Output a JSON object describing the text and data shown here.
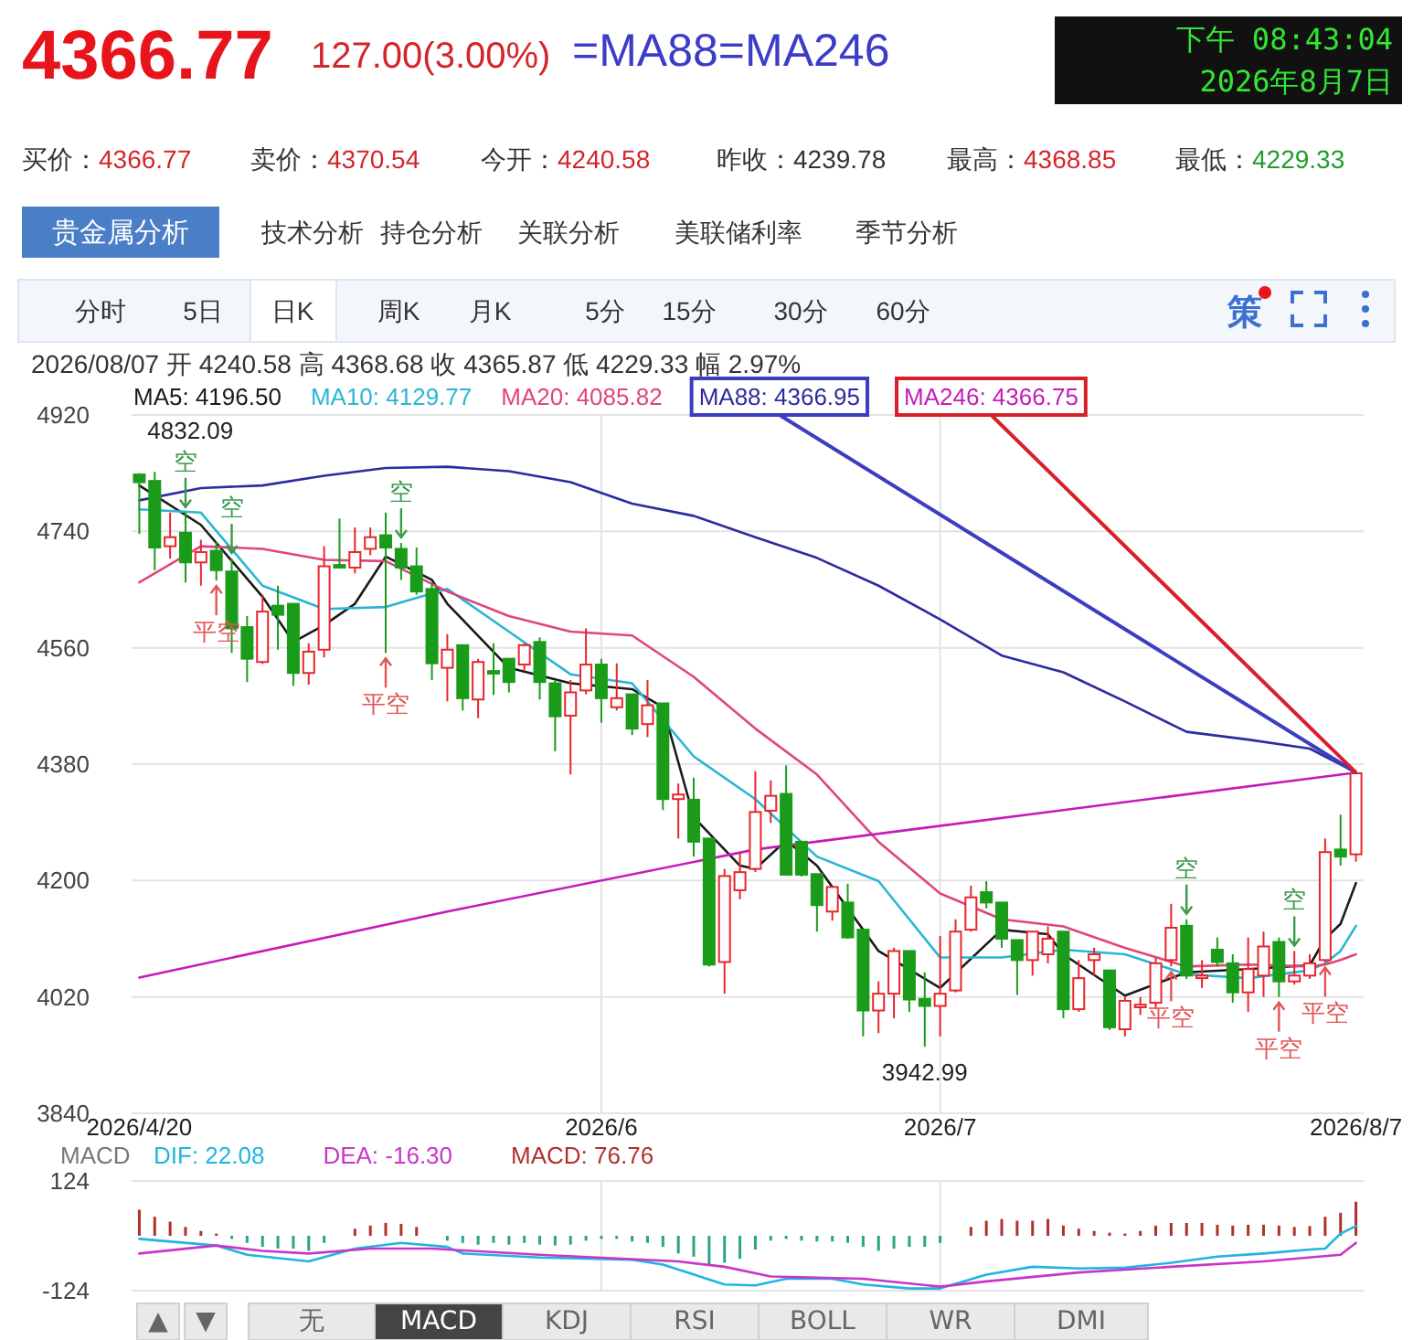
{
  "chart_data": [
    {
      "type": "candlestick",
      "categories": [
        "2026/4/20",
        null,
        null,
        null,
        null,
        null,
        null,
        null,
        null,
        null,
        null,
        null,
        null,
        null,
        null,
        null,
        null,
        null,
        null,
        null,
        null,
        null,
        null,
        null,
        null,
        null,
        null,
        null,
        null,
        null,
        "2026/6",
        null,
        null,
        null,
        null,
        null,
        null,
        null,
        null,
        null,
        null,
        null,
        null,
        null,
        null,
        null,
        null,
        null,
        null,
        null,
        null,
        null,
        "2026/7",
        null,
        null,
        null,
        null,
        null,
        null,
        null,
        null,
        null,
        null,
        null,
        null,
        null,
        null,
        null,
        null,
        null,
        null,
        null,
        null,
        null,
        null,
        null,
        null,
        null,
        null,
        "2026/8/7"
      ],
      "ohlc": [
        [
          4828,
          4830,
          4736,
          4816
        ],
        [
          4818,
          4832.09,
          4680,
          4715
        ],
        [
          4717,
          4769,
          4698,
          4731
        ],
        [
          4738,
          4769,
          4661,
          4692
        ],
        [
          4692,
          4727,
          4656,
          4708
        ],
        [
          4710,
          4724,
          4664,
          4680
        ],
        [
          4678,
          4698,
          4552,
          4590
        ],
        [
          4592,
          4609,
          4507,
          4543
        ],
        [
          4538,
          4642,
          4535,
          4616
        ],
        [
          4625,
          4656,
          4557,
          4611
        ],
        [
          4628,
          4628,
          4501,
          4521
        ],
        [
          4521,
          4567,
          4503,
          4554
        ],
        [
          4557,
          4717,
          4545,
          4686
        ],
        [
          4688,
          4760,
          4684,
          4684
        ],
        [
          4684,
          4746,
          4675,
          4708
        ],
        [
          4713,
          4746,
          4703,
          4731
        ],
        [
          4734,
          4769,
          4552,
          4715
        ],
        [
          4713,
          4722,
          4665,
          4684
        ],
        [
          4686,
          4715,
          4642,
          4647
        ],
        [
          4651,
          4661,
          4510,
          4536
        ],
        [
          4529,
          4581,
          4477,
          4557
        ],
        [
          4564,
          4564,
          4463,
          4482
        ],
        [
          4480,
          4543,
          4451,
          4538
        ],
        [
          4524,
          4567,
          4487,
          4520
        ],
        [
          4543,
          4543,
          4491,
          4507
        ],
        [
          4534,
          4567,
          4524,
          4564
        ],
        [
          4569,
          4576,
          4480,
          4507
        ],
        [
          4505,
          4510,
          4400,
          4454
        ],
        [
          4455,
          4510,
          4364,
          4491
        ],
        [
          4494,
          4590,
          4488,
          4534
        ],
        [
          4534,
          4543,
          4444,
          4482
        ],
        [
          4468,
          4536,
          4463,
          4482
        ],
        [
          4488,
          4488,
          4425,
          4435
        ],
        [
          4442,
          4510,
          4422,
          4471
        ],
        [
          4474,
          4474,
          4309,
          4326
        ],
        [
          4326,
          4350,
          4265,
          4333
        ],
        [
          4325,
          4359,
          4237,
          4260
        ],
        [
          4265,
          4265,
          4067,
          4070
        ],
        [
          4074,
          4218,
          4025,
          4207
        ],
        [
          4185,
          4242,
          4171,
          4213
        ],
        [
          4218,
          4369,
          4213,
          4306
        ],
        [
          4308,
          4355,
          4289,
          4331
        ],
        [
          4334,
          4378,
          4209,
          4209
        ],
        [
          4260,
          4260,
          4206,
          4209
        ],
        [
          4210,
          4210,
          4121,
          4162
        ],
        [
          4152,
          4190,
          4138,
          4190
        ],
        [
          4166,
          4195,
          4110,
          4112
        ],
        [
          4124,
          4124,
          3959,
          3999
        ],
        [
          3999,
          4044,
          3964,
          4025
        ],
        [
          4025,
          4096,
          3987,
          4091
        ],
        [
          4091,
          4091,
          3997,
          4016
        ],
        [
          4017,
          4058,
          3942.99,
          4006
        ],
        [
          4006,
          4114,
          3959,
          4025
        ],
        [
          4030,
          4140,
          4027,
          4121
        ],
        [
          4124,
          4192,
          4121,
          4174
        ],
        [
          4182,
          4199,
          4157,
          4166
        ],
        [
          4166,
          4166,
          4096,
          4110
        ],
        [
          4108,
          4108,
          4023,
          4077
        ],
        [
          4077,
          4121,
          4053,
          4121
        ],
        [
          4086,
          4129,
          4072,
          4110
        ],
        [
          4121,
          4121,
          3987,
          4001
        ],
        [
          4001,
          4077,
          3997,
          4049
        ],
        [
          4077,
          4096,
          4053,
          4086
        ],
        [
          4061,
          4061,
          3969,
          3973
        ],
        [
          3970,
          4020,
          3959,
          4014
        ],
        [
          4004,
          4020,
          3992,
          4008
        ],
        [
          4011,
          4081,
          4001,
          4072
        ],
        [
          4077,
          4164,
          4067,
          4127
        ],
        [
          4130,
          4140,
          4048,
          4053
        ],
        [
          4049,
          4077,
          4034,
          4053
        ],
        [
          4093,
          4112,
          4067,
          4074
        ],
        [
          4072,
          4086,
          4011,
          4027
        ],
        [
          4027,
          4112,
          3997,
          4063
        ],
        [
          4053,
          4121,
          4020,
          4098
        ],
        [
          4105,
          4112,
          4020,
          4044
        ],
        [
          4044,
          4091,
          4039,
          4053
        ],
        [
          4053,
          4086,
          4048,
          4072
        ],
        [
          4077,
          4265,
          4074,
          4244
        ],
        [
          4248,
          4302,
          4223,
          4237
        ],
        [
          4240.58,
          4368.68,
          4229.33,
          4365.87
        ]
      ],
      "colors": [
        "#1a9c1a",
        "#1a9c1a",
        "#e8262d",
        "#1a9c1a",
        "#e8262d",
        "#1a9c1a",
        "#1a9c1a",
        "#1a9c1a",
        "#e8262d",
        "#1a9c1a",
        "#1a9c1a",
        "#e8262d",
        "#e8262d",
        "#1a9c1a",
        "#e8262d",
        "#e8262d",
        "#1a9c1a",
        "#1a9c1a",
        "#1a9c1a",
        "#1a9c1a",
        "#e8262d",
        "#1a9c1a",
        "#e8262d",
        "#1a9c1a",
        "#1a9c1a",
        "#e8262d",
        "#1a9c1a",
        "#1a9c1a",
        "#e8262d",
        "#e8262d",
        "#1a9c1a",
        "#e8262d",
        "#1a9c1a",
        "#e8262d",
        "#1a9c1a",
        "#e8262d",
        "#1a9c1a",
        "#1a9c1a",
        "#e8262d",
        "#e8262d",
        "#e8262d",
        "#e8262d",
        "#1a9c1a",
        "#1a9c1a",
        "#1a9c1a",
        "#e8262d",
        "#1a9c1a",
        "#1a9c1a",
        "#e8262d",
        "#e8262d",
        "#1a9c1a",
        "#1a9c1a",
        "#e8262d",
        "#e8262d",
        "#e8262d",
        "#1a9c1a",
        "#1a9c1a",
        "#1a9c1a",
        "#e8262d",
        "#e8262d",
        "#1a9c1a",
        "#e8262d",
        "#e8262d",
        "#1a9c1a",
        "#e8262d",
        "#e8262d",
        "#e8262d",
        "#e8262d",
        "#1a9c1a",
        "#e8262d",
        "#1a9c1a",
        "#1a9c1a",
        "#e8262d",
        "#e8262d",
        "#1a9c1a",
        "#e8262d",
        "#e8262d",
        "#e8262d",
        "#1a9c1a",
        "#e8262d"
      ],
      "series": [
        {
          "name": "MA5: 4196.50",
          "type": "line",
          "color": "#1a1a1a",
          "values": [
            4811,
            null,
            null,
            null,
            4750,
            null,
            null,
            null,
            4639,
            null,
            4569,
            null,
            4595,
            null,
            4628,
            null,
            4701,
            null,
            null,
            4665,
            4628,
            null,
            null,
            null,
            4529,
            null,
            null,
            null,
            4505,
            null,
            null,
            null,
            4496,
            null,
            4468,
            null,
            4298,
            null,
            null,
            4223,
            4218,
            null,
            4262,
            null,
            4223,
            null,
            null,
            null,
            4091,
            null,
            null,
            null,
            4034,
            null,
            null,
            null,
            4124,
            null,
            null,
            4117,
            4086,
            null,
            null,
            null,
            4022,
            null,
            null,
            null,
            4058,
            null,
            null,
            null,
            4063,
            null,
            null,
            null,
            4069,
            4110,
            4133,
            4196
          ]
        },
        {
          "name": "MA10: 4129.77",
          "type": "line",
          "color": "#29b6d6",
          "values": [
            4774,
            null,
            null,
            null,
            4769,
            null,
            null,
            null,
            4656,
            null,
            null,
            null,
            4620,
            null,
            null,
            null,
            4623,
            null,
            null,
            null,
            4651,
            null,
            null,
            null,
            4585,
            null,
            null,
            null,
            4519,
            null,
            null,
            null,
            4505,
            null,
            null,
            null,
            4392,
            null,
            null,
            null,
            4326,
            null,
            null,
            null,
            4237,
            null,
            null,
            null,
            4199,
            null,
            null,
            null,
            4081,
            null,
            null,
            null,
            4081,
            null,
            null,
            null,
            4093,
            null,
            null,
            null,
            4086,
            null,
            null,
            null,
            4055,
            null,
            null,
            null,
            4049,
            null,
            null,
            null,
            4061,
            4072,
            4091,
            4130
          ]
        },
        {
          "name": "MA20: 4085.82",
          "type": "line",
          "color": "#e0457b",
          "values": [
            4661,
            null,
            null,
            null,
            4717,
            null,
            null,
            null,
            4713,
            null,
            null,
            null,
            4696,
            null,
            null,
            null,
            4694,
            null,
            null,
            null,
            4647,
            null,
            null,
            null,
            4609,
            null,
            null,
            null,
            4585,
            null,
            null,
            null,
            4579,
            null,
            null,
            null,
            4515,
            null,
            null,
            null,
            4435,
            null,
            null,
            null,
            4364,
            null,
            null,
            null,
            4260,
            null,
            null,
            null,
            4180,
            null,
            null,
            null,
            4140,
            null,
            null,
            null,
            4129,
            null,
            null,
            null,
            4096,
            null,
            null,
            null,
            4067,
            null,
            null,
            null,
            4070,
            null,
            null,
            null,
            4067,
            4070,
            4077,
            4086
          ]
        },
        {
          "name": "MA88: 4366.95",
          "type": "line",
          "color": "#2c2ca0",
          "values": [
            4788,
            null,
            null,
            null,
            4807,
            null,
            null,
            null,
            4811,
            null,
            null,
            null,
            4826,
            null,
            null,
            null,
            4838,
            null,
            null,
            null,
            4840,
            null,
            null,
            null,
            4833,
            null,
            null,
            null,
            4816,
            null,
            null,
            null,
            4783,
            null,
            null,
            null,
            4764,
            null,
            null,
            null,
            4731,
            null,
            null,
            null,
            4699,
            null,
            null,
            null,
            4656,
            null,
            null,
            null,
            4604,
            null,
            null,
            null,
            4548,
            null,
            null,
            null,
            4522,
            null,
            null,
            null,
            4477,
            null,
            null,
            null,
            4430,
            null,
            null,
            null,
            4418,
            null,
            null,
            null,
            4404,
            null,
            null,
            4367
          ]
        },
        {
          "name": "MA246: 4366.75",
          "type": "line",
          "color": "#c71ab8",
          "values": [
            4050,
            null,
            null,
            null,
            null,
            null,
            null,
            null,
            null,
            null,
            null,
            null,
            null,
            null,
            null,
            null,
            null,
            null,
            null,
            null,
            4152,
            null,
            null,
            null,
            null,
            null,
            null,
            null,
            null,
            null,
            null,
            null,
            null,
            null,
            null,
            null,
            null,
            null,
            null,
            null,
            4248,
            null,
            null,
            null,
            null,
            null,
            null,
            null,
            null,
            null,
            null,
            null,
            null,
            null,
            null,
            null,
            null,
            null,
            null,
            null,
            4309,
            null,
            null,
            null,
            null,
            null,
            null,
            null,
            null,
            null,
            null,
            null,
            null,
            null,
            null,
            null,
            null,
            null,
            null,
            4367
          ]
        }
      ],
      "ylim": [
        3840,
        4920
      ],
      "yticks": [
        3840,
        4020,
        4200,
        4380,
        4560,
        4740,
        4920
      ],
      "grid": true,
      "legend": "top",
      "annotations": [
        "4366.77",
        "127.00(3.00%)",
        "=MA88=MA246",
        "下午 08:43:04",
        "2026年8月7日",
        "买价：",
        "4366.77",
        "卖价：",
        "4370.54",
        "今开：",
        "4240.58",
        "昨收：",
        "4239.78",
        "最高：",
        "4368.85",
        "最低：",
        "4229.33",
        "贵金属分析",
        "技术分析",
        "持仓分析",
        "关联分析",
        "美联储利率",
        "季节分析",
        "分时",
        "5日",
        "日K",
        "周K",
        "月K",
        "5分",
        "15分",
        "30分",
        "60分",
        "策",
        "2026/08/07 开 4240.58 高 4368.68 收 4365.87 低 4229.33 幅 2.97%",
        "4832.09",
        "3942.99",
        "空",
        "空",
        "空",
        "平空",
        "平空",
        "空",
        "平空",
        "空",
        "平空",
        "平空"
      ]
    },
    {
      "type": "bar",
      "categories": [
        "2026/4/20",
        null,
        null,
        null,
        null,
        null,
        null,
        null,
        null,
        null,
        null,
        null,
        null,
        null,
        null,
        null,
        null,
        null,
        null,
        null,
        null,
        null,
        null,
        null,
        null,
        null,
        null,
        null,
        null,
        null,
        "2026/6",
        null,
        null,
        null,
        null,
        null,
        null,
        null,
        null,
        null,
        null,
        null,
        null,
        null,
        null,
        null,
        null,
        null,
        null,
        null,
        null,
        null,
        "2026/7",
        null,
        null,
        null,
        null,
        null,
        null,
        null,
        null,
        null,
        null,
        null,
        null,
        null,
        null,
        null,
        null,
        null,
        null,
        null,
        null,
        null,
        null,
        null,
        null,
        null,
        null,
        "2026/8/7"
      ],
      "legend_title": "MACD",
      "legend": "top",
      "grid": true,
      "tick_labels": "y",
      "ylim": [
        -124,
        124
      ],
      "yticks": [
        -124,
        124
      ],
      "series": [
        {
          "name": "DIF: 22.08",
          "type": "line",
          "color": "#1fb5e0",
          "values": [
            -7,
            null,
            null,
            null,
            null,
            -22,
            null,
            -43,
            null,
            null,
            null,
            -58,
            null,
            null,
            -29,
            null,
            null,
            -16,
            null,
            null,
            -25,
            -40,
            null,
            null,
            null,
            null,
            -49,
            null,
            null,
            null,
            null,
            null,
            -54,
            null,
            -65,
            null,
            null,
            null,
            -110,
            null,
            -112,
            null,
            -97,
            null,
            null,
            -97,
            null,
            -110,
            null,
            null,
            -119,
            null,
            -119,
            null,
            null,
            -88,
            null,
            null,
            -70,
            null,
            null,
            -74,
            null,
            null,
            -72,
            null,
            null,
            -61,
            null,
            null,
            -47,
            null,
            null,
            -40,
            null,
            null,
            -31,
            -29,
            5,
            22
          ]
        },
        {
          "name": "DEA: -16.30",
          "type": "line",
          "color": "#c935c9",
          "values": [
            -40,
            null,
            null,
            null,
            null,
            -22,
            null,
            null,
            -34,
            null,
            null,
            -40,
            null,
            null,
            null,
            -29,
            null,
            null,
            null,
            -29,
            null,
            null,
            null,
            null,
            null,
            null,
            -43,
            null,
            null,
            null,
            null,
            null,
            null,
            null,
            null,
            -58,
            null,
            null,
            -70,
            null,
            null,
            -92,
            null,
            null,
            null,
            null,
            null,
            -97,
            null,
            null,
            null,
            null,
            -115,
            null,
            null,
            -103,
            null,
            null,
            null,
            null,
            null,
            -83,
            null,
            null,
            null,
            null,
            null,
            -70,
            null,
            null,
            null,
            null,
            null,
            -58,
            null,
            null,
            null,
            null,
            -43,
            -16
          ]
        },
        {
          "name": "MACD: 76.76",
          "type": "bar",
          "color": "#b0302a",
          "values": [
            59,
            43,
            32,
            20,
            11,
            5,
            -7,
            -16,
            -25,
            -29,
            -29,
            -34,
            -16,
            null,
            16,
            23,
            29,
            27,
            20,
            null,
            -11,
            -16,
            -20,
            -16,
            -20,
            -16,
            -20,
            -22,
            -20,
            -11,
            -7,
            -7,
            -13,
            -16,
            -25,
            -40,
            -47,
            -67,
            -61,
            -52,
            -31,
            -11,
            -7,
            -11,
            -13,
            -13,
            -16,
            -25,
            -34,
            -29,
            -25,
            -25,
            -16,
            null,
            20,
            34,
            38,
            34,
            34,
            38,
            23,
            16,
            11,
            7,
            5,
            11,
            23,
            29,
            29,
            29,
            25,
            23,
            25,
            25,
            23,
            20,
            22,
            43,
            52,
            77
          ],
          "colors": [
            "#b0302a",
            "#b0302a",
            "#b0302a",
            "#b0302a",
            "#b0302a",
            "#b0302a",
            "#2aa38a",
            "#2aa38a",
            "#2aa38a",
            "#2aa38a",
            "#2aa38a",
            "#2aa38a",
            "#2aa38a",
            null,
            "#b0302a",
            "#b0302a",
            "#b0302a",
            "#b0302a",
            "#b0302a",
            null,
            "#2aa38a",
            "#2aa38a",
            "#2aa38a",
            "#2aa38a",
            "#2aa38a",
            "#2aa38a",
            "#2aa38a",
            "#2aa38a",
            "#2aa38a",
            "#2aa38a",
            "#2aa38a",
            "#2aa38a",
            "#2aa38a",
            "#2aa38a",
            "#2aa38a",
            "#2aa38a",
            "#2aa38a",
            "#2aa38a",
            "#2aa38a",
            "#2aa38a",
            "#2aa38a",
            "#2aa38a",
            "#2aa38a",
            "#2aa38a",
            "#2aa38a",
            "#2aa38a",
            "#2aa38a",
            "#2aa38a",
            "#2aa38a",
            "#2aa38a",
            "#2aa38a",
            "#2aa38a",
            "#2aa38a",
            null,
            "#b0302a",
            "#b0302a",
            "#b0302a",
            "#b0302a",
            "#b0302a",
            "#b0302a",
            "#b0302a",
            "#b0302a",
            "#b0302a",
            "#b0302a",
            "#b0302a",
            "#b0302a",
            "#b0302a",
            "#b0302a",
            "#b0302a",
            "#b0302a",
            "#b0302a",
            "#b0302a",
            "#b0302a",
            "#b0302a",
            "#b0302a",
            "#b0302a",
            "#b0302a",
            "#b0302a",
            "#b0302a",
            "#b0302a"
          ]
        }
      ],
      "annotations": [
        "▲",
        "▼",
        "无",
        "MACD",
        "KDJ",
        "RSI",
        "BOLL",
        "WR",
        "DMI"
      ]
    }
  ]
}
